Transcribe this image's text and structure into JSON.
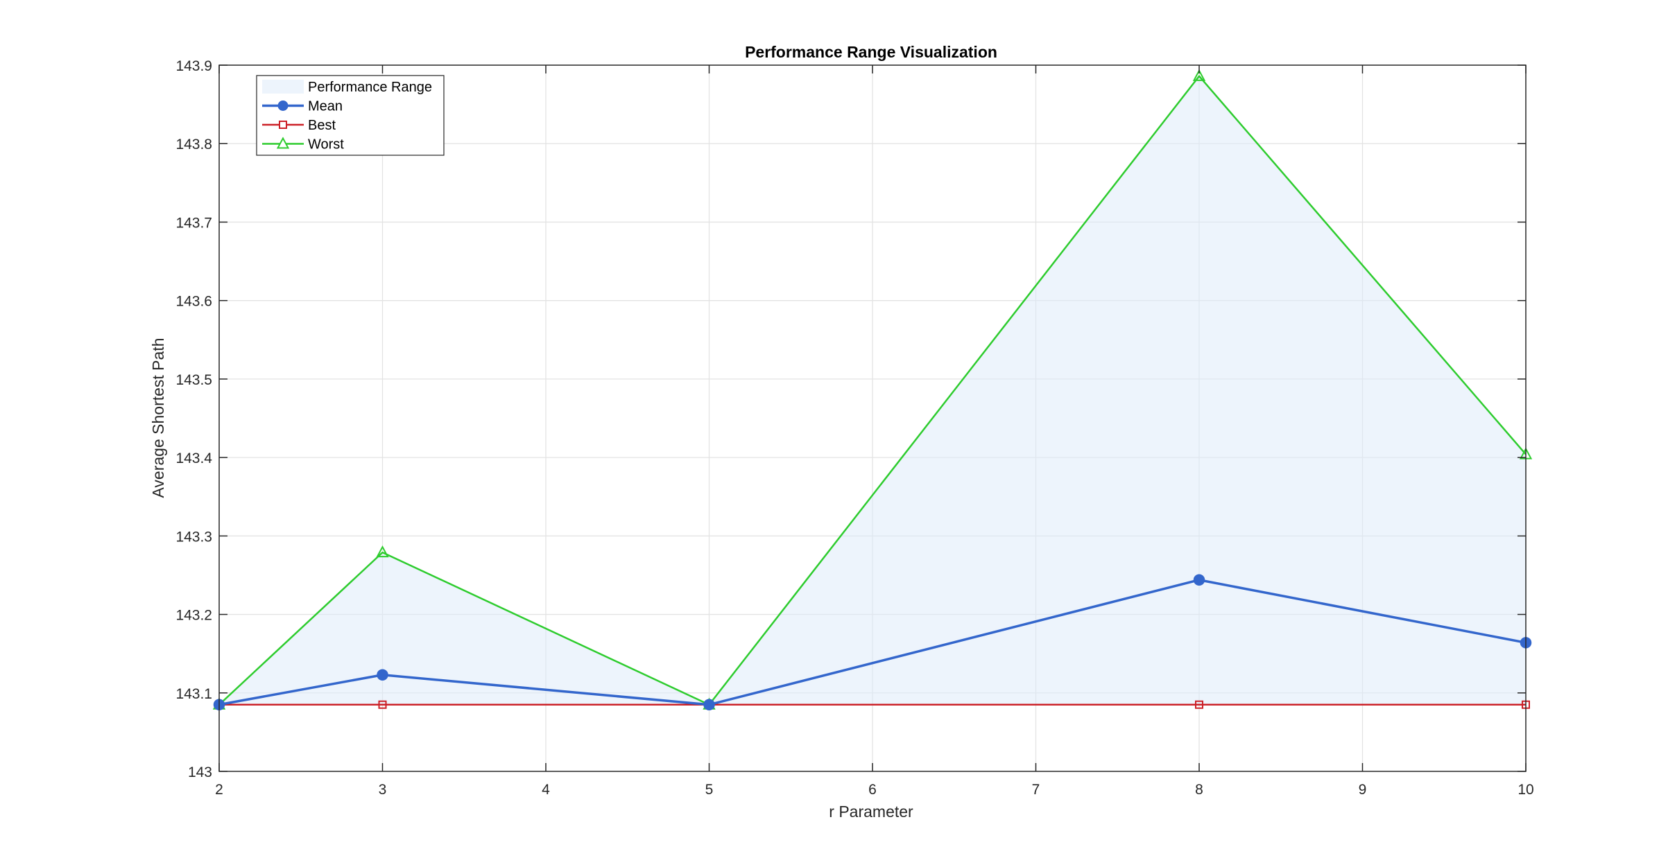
{
  "chart_data": {
    "type": "line",
    "title": "Performance Range Visualization",
    "xlabel": "r Parameter",
    "ylabel": "Average Shortest Path",
    "x": [
      2,
      3,
      5,
      8,
      10
    ],
    "xlim": [
      2,
      10
    ],
    "ylim": [
      143,
      143.9
    ],
    "xticks": [
      2,
      3,
      4,
      5,
      6,
      7,
      8,
      9,
      10
    ],
    "xtick_labels": [
      "2",
      "3",
      "4",
      "5",
      "6",
      "7",
      "8",
      "9",
      "10"
    ],
    "yticks": [
      143,
      143.1,
      143.2,
      143.3,
      143.4,
      143.5,
      143.6,
      143.7,
      143.8,
      143.9
    ],
    "ytick_labels": [
      "143",
      "143.1",
      "143.2",
      "143.3",
      "143.4",
      "143.5",
      "143.6",
      "143.7",
      "143.8",
      "143.9"
    ],
    "grid": true,
    "legend_position": "top-left",
    "range_fill": {
      "name": "Performance Range",
      "color": "#deebf9"
    },
    "series": [
      {
        "name": "Mean",
        "values": [
          143.085,
          143.123,
          143.085,
          143.244,
          143.164
        ],
        "color": "#3366cc",
        "marker": "circle"
      },
      {
        "name": "Best",
        "values": [
          143.085,
          143.085,
          143.085,
          143.085,
          143.085
        ],
        "color": "#cc2027",
        "marker": "square"
      },
      {
        "name": "Worst",
        "values": [
          143.085,
          143.279,
          143.085,
          143.886,
          143.404
        ],
        "color": "#2ecc2e",
        "marker": "triangle"
      }
    ]
  }
}
